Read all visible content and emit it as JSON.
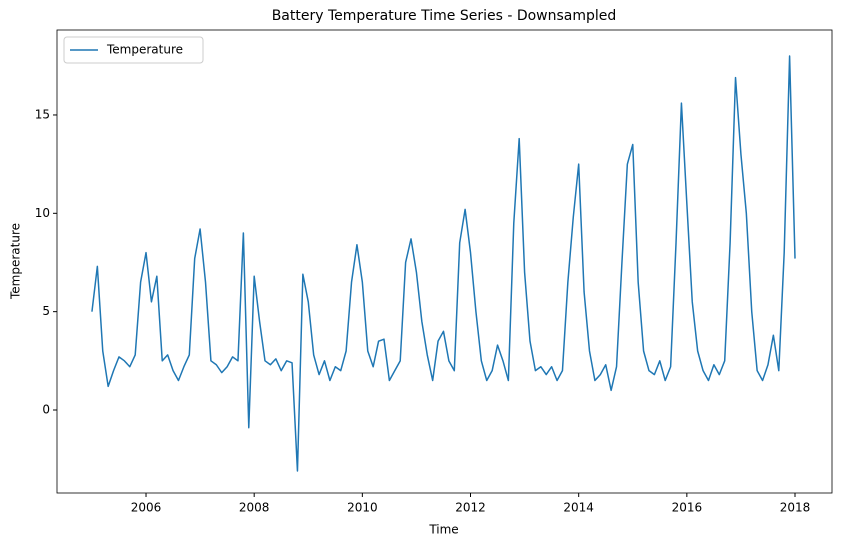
{
  "chart_data": {
    "type": "line",
    "title": "Battery Temperature Time Series - Downsampled",
    "xlabel": "Time",
    "ylabel": "Temperature",
    "x": [
      2005.0,
      2005.1,
      2005.2,
      2005.3,
      2005.4,
      2005.5,
      2005.6,
      2005.7,
      2005.8,
      2005.9,
      2006.0,
      2006.1,
      2006.2,
      2006.3,
      2006.4,
      2006.5,
      2006.6,
      2006.7,
      2006.8,
      2006.9,
      2007.0,
      2007.1,
      2007.2,
      2007.3,
      2007.4,
      2007.5,
      2007.6,
      2007.7,
      2007.8,
      2007.9,
      2008.0,
      2008.1,
      2008.2,
      2008.3,
      2008.4,
      2008.5,
      2008.6,
      2008.7,
      2008.8,
      2008.9,
      2009.0,
      2009.1,
      2009.2,
      2009.3,
      2009.4,
      2009.5,
      2009.6,
      2009.7,
      2009.8,
      2009.9,
      2010.0,
      2010.1,
      2010.2,
      2010.3,
      2010.4,
      2010.5,
      2010.6,
      2010.7,
      2010.8,
      2010.9,
      2011.0,
      2011.1,
      2011.2,
      2011.3,
      2011.4,
      2011.5,
      2011.6,
      2011.7,
      2011.8,
      2011.9,
      2012.0,
      2012.1,
      2012.2,
      2012.3,
      2012.4,
      2012.5,
      2012.6,
      2012.7,
      2012.8,
      2012.9,
      2013.0,
      2013.1,
      2013.2,
      2013.3,
      2013.4,
      2013.5,
      2013.6,
      2013.7,
      2013.8,
      2013.9,
      2014.0,
      2014.1,
      2014.2,
      2014.3,
      2014.4,
      2014.5,
      2014.6,
      2014.7,
      2014.8,
      2014.9,
      2015.0,
      2015.1,
      2015.2,
      2015.3,
      2015.4,
      2015.5,
      2015.6,
      2015.7,
      2015.8,
      2015.9,
      2016.0,
      2016.1,
      2016.2,
      2016.3,
      2016.4,
      2016.5,
      2016.6,
      2016.7,
      2016.8,
      2016.9,
      2017.0,
      2017.1,
      2017.2,
      2017.3,
      2017.4,
      2017.5,
      2017.6,
      2017.7,
      2017.8,
      2017.9,
      2018.0
    ],
    "series": [
      {
        "name": "Temperature",
        "color": "#1f77b4",
        "values": [
          5.0,
          7.3,
          3.0,
          1.2,
          2.0,
          2.7,
          2.5,
          2.2,
          2.8,
          6.5,
          8.0,
          5.5,
          6.8,
          2.5,
          2.8,
          2.0,
          1.5,
          2.2,
          2.8,
          7.7,
          9.2,
          6.5,
          2.5,
          2.3,
          1.9,
          2.2,
          2.7,
          2.5,
          9.0,
          -0.9,
          6.8,
          4.5,
          2.5,
          2.3,
          2.6,
          2.0,
          2.5,
          2.4,
          -3.1,
          6.9,
          5.5,
          2.8,
          1.8,
          2.5,
          1.5,
          2.2,
          2.0,
          3.0,
          6.5,
          8.4,
          6.5,
          3.0,
          2.2,
          3.5,
          3.6,
          1.5,
          2.0,
          2.5,
          7.5,
          8.7,
          7.0,
          4.5,
          2.8,
          1.5,
          3.5,
          4.0,
          2.5,
          2.0,
          8.5,
          10.2,
          8.0,
          5.0,
          2.5,
          1.5,
          2.0,
          3.3,
          2.5,
          1.5,
          9.5,
          13.8,
          7.0,
          3.5,
          2.0,
          2.2,
          1.8,
          2.2,
          1.5,
          2.0,
          6.5,
          9.8,
          12.5,
          6.0,
          3.0,
          1.5,
          1.8,
          2.3,
          1.0,
          2.2,
          7.5,
          12.5,
          13.5,
          6.5,
          3.0,
          2.0,
          1.8,
          2.5,
          1.5,
          2.2,
          8.5,
          15.6,
          10.5,
          5.5,
          3.0,
          2.0,
          1.5,
          2.3,
          1.8,
          2.5,
          8.5,
          16.9,
          13.0,
          10.0,
          5.0,
          2.0,
          1.5,
          2.3,
          3.8,
          2.0,
          8.0,
          18.0,
          7.7
        ]
      }
    ],
    "xlim": [
      2004.354,
      2018.684
    ],
    "ylim": [
      -4.22,
      19.32
    ],
    "xticks": [
      2006,
      2008,
      2010,
      2012,
      2014,
      2016,
      2018
    ],
    "yticks": [
      0,
      5,
      10,
      15
    ],
    "legend": "upper left"
  }
}
